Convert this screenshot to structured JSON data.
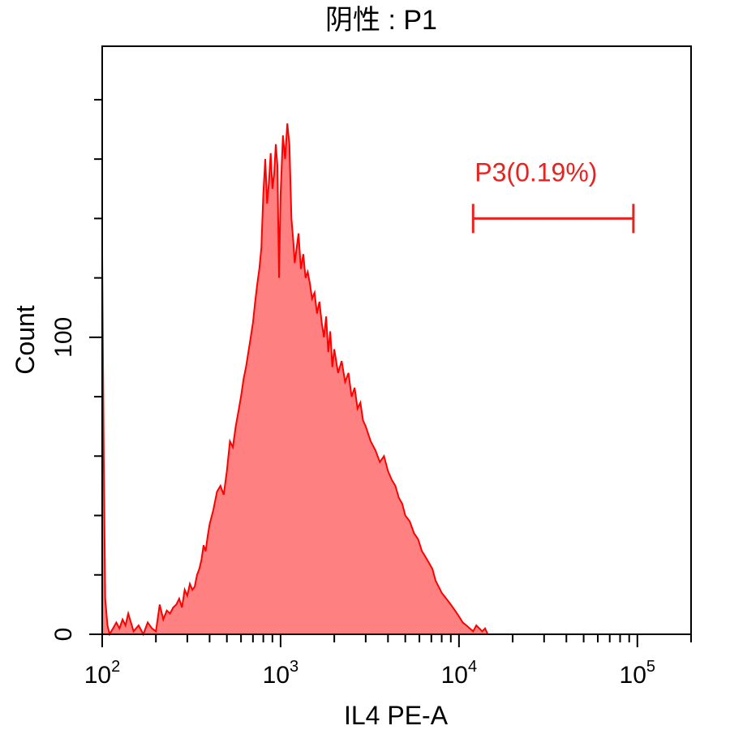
{
  "colors": {
    "histogram_stroke": "#ff0000",
    "histogram_fill": "#ff8080",
    "gate": "#e8231f",
    "frame": "#000000"
  },
  "chart_data": {
    "type": "area",
    "title": "阴性 : P1",
    "xlabel": "IL4 PE-A",
    "ylabel": "Count",
    "x_scale": "log",
    "xlim": [
      100,
      200000
    ],
    "ylim": [
      0,
      198
    ],
    "x_ticks": [
      {
        "value": 100,
        "base": "10",
        "exp": "2"
      },
      {
        "value": 1000,
        "base": "10",
        "exp": "3"
      },
      {
        "value": 10000,
        "base": "10",
        "exp": "4"
      },
      {
        "value": 100000,
        "base": "10",
        "exp": "5"
      }
    ],
    "y_ticks": [
      {
        "value": 0,
        "label": "0"
      },
      {
        "value": 100,
        "label": "100"
      }
    ],
    "y_minor_step": 20,
    "series": [
      {
        "x": [
          100,
          102,
          104,
          107,
          110,
          115,
          120,
          125,
          130,
          135,
          140,
          150,
          160,
          170,
          180,
          190,
          200,
          210,
          220,
          230,
          240,
          250,
          260,
          270,
          280,
          290,
          300,
          310,
          320,
          330,
          340,
          350,
          360,
          370,
          380,
          390,
          400,
          420,
          440,
          460,
          480,
          500,
          520,
          540,
          560,
          580,
          600,
          620,
          640,
          660,
          680,
          700,
          720,
          740,
          760,
          780,
          800,
          820,
          840,
          860,
          880,
          900,
          920,
          940,
          960,
          980,
          1000,
          1030,
          1060,
          1090,
          1120,
          1150,
          1180,
          1200,
          1230,
          1260,
          1300,
          1340,
          1380,
          1420,
          1460,
          1500,
          1550,
          1600,
          1650,
          1700,
          1750,
          1800,
          1850,
          1900,
          1950,
          2000,
          2100,
          2200,
          2300,
          2400,
          2500,
          2600,
          2700,
          2800,
          2900,
          3000,
          3200,
          3400,
          3600,
          3800,
          4000,
          4200,
          4400,
          4600,
          4800,
          5000,
          5300,
          5600,
          5900,
          6200,
          6500,
          6800,
          7100,
          7400,
          7700,
          8000,
          8500,
          9000,
          9500,
          10000,
          10500,
          11000,
          11500,
          12000,
          12500,
          13000,
          13500,
          14000,
          14500
        ],
        "values": [
          128,
          60,
          12,
          3,
          0,
          2,
          4,
          2,
          5,
          3,
          7,
          1,
          3,
          0,
          4,
          2,
          1,
          10,
          5,
          8,
          7,
          9,
          10,
          12,
          9,
          15,
          13,
          17,
          15,
          16,
          20,
          22,
          25,
          30,
          28,
          33,
          37,
          42,
          48,
          50,
          47,
          55,
          65,
          63,
          70,
          75,
          80,
          86,
          90,
          95,
          100,
          105,
          112,
          118,
          123,
          130,
          148,
          160,
          145,
          152,
          162,
          150,
          155,
          165,
          158,
          120,
          148,
          168,
          160,
          172,
          165,
          140,
          132,
          125,
          130,
          135,
          123,
          128,
          120,
          122,
          118,
          113,
          115,
          108,
          112,
          105,
          100,
          107,
          95,
          102,
          90,
          96,
          88,
          92,
          85,
          88,
          80,
          83,
          76,
          78,
          72,
          70,
          65,
          62,
          58,
          60,
          55,
          52,
          50,
          46,
          44,
          40,
          38,
          34,
          32,
          28,
          26,
          24,
          22,
          18,
          16,
          14,
          12,
          10,
          8,
          6,
          4,
          3,
          2,
          1,
          3,
          2,
          1,
          2,
          0
        ]
      }
    ],
    "gate": {
      "label": "P3(0.19%)",
      "x_start": 12000,
      "x_end": 95000,
      "y": 140
    }
  }
}
